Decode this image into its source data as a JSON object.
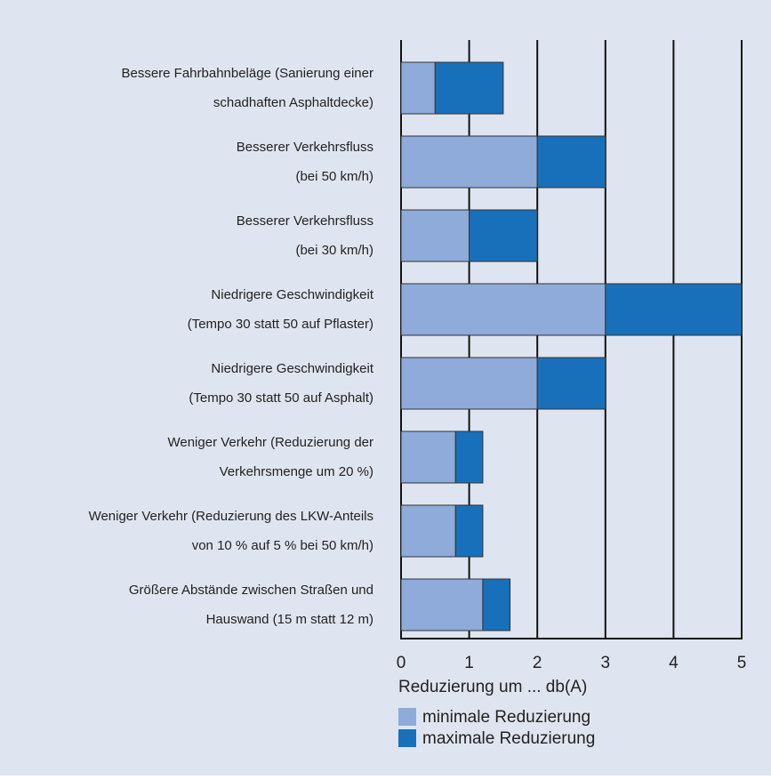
{
  "chart_data": {
    "type": "stacked-bar-horizontal",
    "xlabel": "Reduzierung um  ... db(A)",
    "categories": [
      [
        "Bessere Fahrbahnbeläge (Sanierung einer",
        "schadhaften Asphaltdecke)"
      ],
      [
        "Besserer Verkehrsfluss",
        "(bei 50 km/h)"
      ],
      [
        "Besserer Verkehrsfluss",
        "(bei 30 km/h)"
      ],
      [
        "Niedrigere Geschwindigkeit",
        "(Tempo 30 statt 50 auf Pflaster)"
      ],
      [
        "Niedrigere Geschwindigkeit",
        "(Tempo 30 statt 50 auf Asphalt)"
      ],
      [
        "Weniger Verkehr (Reduzierung der",
        "Verkehrsmenge um 20 %)"
      ],
      [
        "Weniger Verkehr (Reduzierung des LKW-Anteils",
        "von 10 % auf 5 % bei 50 km/h)"
      ],
      [
        "Größere Abstände zwischen Straßen und",
        "Hauswand (15 m statt 12 m)"
      ]
    ],
    "series": [
      {
        "name": "minimale Reduzierung",
        "color": "#8eabd9",
        "values": [
          0.5,
          2,
          1,
          3,
          2,
          0.8,
          0.8,
          1.2
        ]
      },
      {
        "name": "maximale Reduzierung",
        "color": "#1870ba",
        "values": [
          1,
          1,
          1,
          2,
          1,
          0.4,
          0.4,
          0.4
        ]
      }
    ],
    "xlim": [
      0,
      5
    ],
    "xticks": [
      0,
      1,
      2,
      3,
      4,
      5
    ],
    "grid": true
  }
}
